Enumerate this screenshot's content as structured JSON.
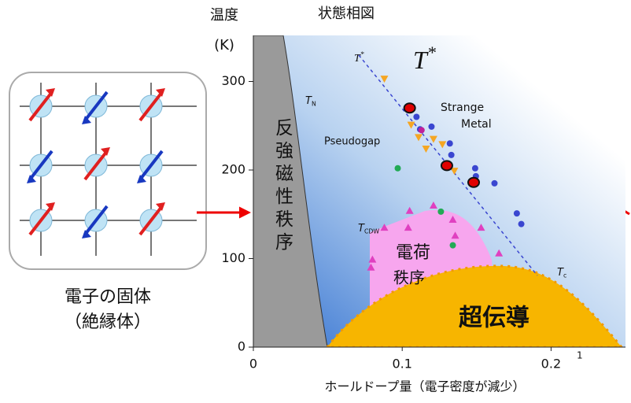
{
  "chart_data": {
    "type": "scatter",
    "title": "状態相図",
    "y_label": [
      "温度",
      "(K)"
    ],
    "x_label": "ホールドープ量（電子密度が減少）",
    "xlim": [
      0,
      0.25
    ],
    "ylim": [
      0,
      352
    ],
    "xticks": [
      0,
      0.1,
      0.2
    ],
    "yticks": [
      0,
      100,
      200,
      300
    ],
    "series": [
      {
        "color": "#3a46d0",
        "marker": "circle",
        "x": [
          0.1096,
          0.112,
          0.1197,
          0.132,
          0.133,
          0.149,
          0.1495,
          0.162,
          0.177,
          0.18
        ],
        "values": [
          260,
          246,
          249,
          230,
          217,
          202,
          193,
          185,
          151,
          139
        ]
      },
      {
        "color": "#f5a623",
        "marker": "triangle-down",
        "x": [
          0.088,
          0.106,
          0.111,
          0.116,
          0.121,
          0.127,
          0.135
        ],
        "values": [
          303,
          251,
          237,
          224,
          235,
          229,
          199
        ]
      },
      {
        "color": "#22aa55",
        "marker": "circle",
        "x": [
          0.097,
          0.126,
          0.134
        ],
        "values": [
          202,
          153,
          115
        ]
      },
      {
        "color": "#e040c0",
        "marker": "triangle",
        "x": [
          0.079,
          0.08,
          0.088,
          0.104,
          0.105,
          0.121,
          0.134,
          0.1356,
          0.153,
          0.165
        ],
        "values": [
          90,
          99,
          135,
          135,
          154,
          160,
          144,
          126,
          135,
          106
        ]
      },
      {
        "color": "#c0209a",
        "marker": "circle",
        "x": [
          0.113
        ],
        "values": [
          245
        ]
      },
      {
        "color": "#e00000",
        "marker": "big-circle",
        "x": [
          0.105,
          0.13,
          0.148
        ],
        "values": [
          270,
          205,
          186
        ]
      }
    ],
    "regions": {
      "antiferro": "反強磁性秩序",
      "cdw": [
        "電荷",
        "秩序"
      ],
      "sc": "超伝導",
      "pseudogap": "Pseudogap",
      "strange_metal": [
        "Strange",
        "Metal"
      ]
    },
    "annotations": {
      "t_star_big": {
        "text": "T",
        "sup": "*"
      },
      "t_star_small": {
        "text": "T",
        "sup": "*"
      },
      "t_n": {
        "text": "T",
        "sub": "N"
      },
      "t_cdw": {
        "text": "T",
        "sub": "CDW"
      },
      "t_c": {
        "text": "T",
        "sub": "c"
      },
      "stray": "1"
    },
    "inset": {
      "caption": [
        "電子の固体",
        "（絶縁体）"
      ]
    }
  }
}
